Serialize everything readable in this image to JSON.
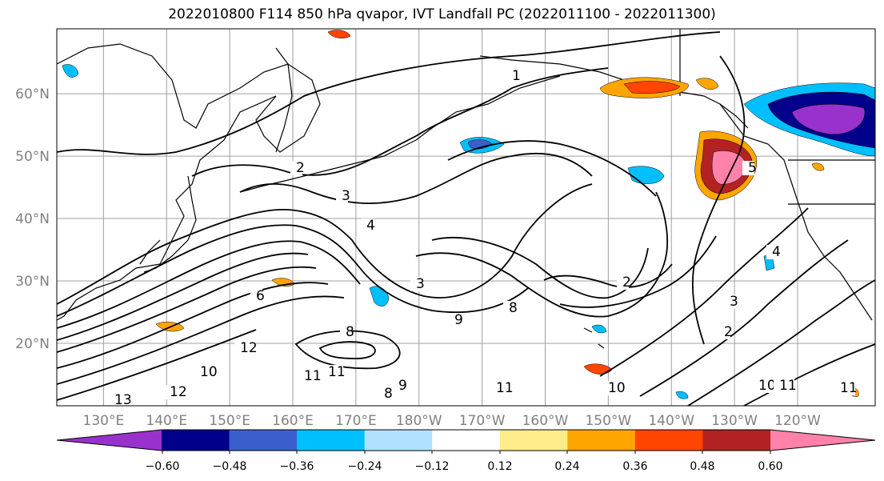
{
  "title": "2022010800 F114 850 hPa qvapor, IVT Landfall PC (2022011100 - 2022011300)",
  "lat_labels": [
    "60°N",
    "50°N",
    "40°N",
    "30°N",
    "20°N"
  ],
  "lat_values": [
    60,
    50,
    40,
    30,
    20
  ],
  "lon_labels": [
    "130°E",
    "140°E",
    "150°E",
    "160°E",
    "170°E",
    "180°W",
    "170°W",
    "160°W",
    "150°W",
    "140°W",
    "130°W",
    "120°W"
  ],
  "lon_values": [
    130,
    140,
    150,
    160,
    170,
    180,
    190,
    200,
    210,
    220,
    230,
    240
  ],
  "colorbar": {
    "colors": [
      "#9932cc",
      "#00008b",
      "#3a5fcd",
      "#00bfff",
      "#b0e2ff",
      "#ffffff",
      "#ffec8b",
      "#ffa500",
      "#ff4500",
      "#b22222",
      "#ff82ab"
    ],
    "tick_labels": [
      "−0.60",
      "−0.48",
      "−0.36",
      "−0.24",
      "−0.12",
      "0.12",
      "0.24",
      "0.36",
      "0.48",
      "0.60"
    ],
    "ticks": [
      -0.6,
      -0.48,
      -0.36,
      -0.24,
      -0.12,
      0.12,
      0.24,
      0.36,
      0.48,
      0.6
    ]
  },
  "contour_labels": [
    "1",
    "2",
    "3",
    "4",
    "3",
    "6",
    "8",
    "9",
    "10",
    "11",
    "12",
    "13",
    "8",
    "11",
    "12",
    "10",
    "11",
    "2",
    "3",
    "4",
    "2",
    "8",
    "9",
    "10",
    "11",
    "11",
    "5"
  ]
}
